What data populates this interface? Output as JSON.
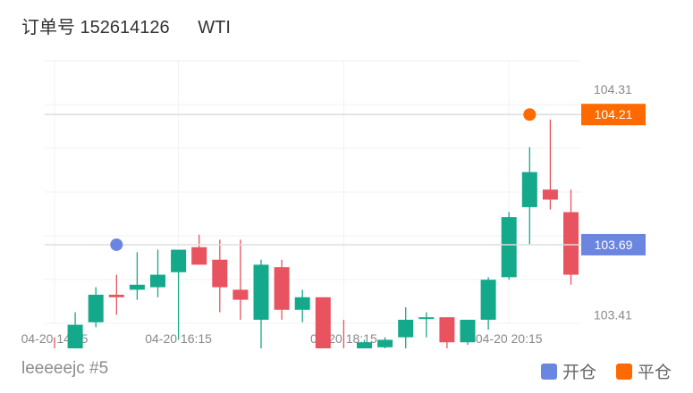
{
  "header": {
    "order_label": "订单号 152614126",
    "symbol": "WTI"
  },
  "footer": {
    "user": "leeeeejc #5"
  },
  "legend": [
    {
      "label": "开仓",
      "color": "#6b86e0"
    },
    {
      "label": "平仓",
      "color": "#ff6a00"
    }
  ],
  "colors": {
    "up": "#e8535f",
    "down": "#14a98b"
  },
  "chart_data": {
    "type": "candlestick",
    "ylim": [
      103.0,
      104.4
    ],
    "y_ticks": [
      104.31,
      103.41
    ],
    "x_tick_labels": [
      "04-20 14:15",
      "04-20 16:15",
      "04-20 18:15",
      "04-20 20:15"
    ],
    "x_tick_indices": [
      0,
      6,
      14,
      22
    ],
    "candles": [
      {
        "o": 103.27,
        "h": 103.32,
        "l": 102.97,
        "c": 103.17
      },
      {
        "o": 103.16,
        "h": 103.42,
        "l": 103.12,
        "c": 103.37
      },
      {
        "o": 103.38,
        "h": 103.52,
        "l": 103.36,
        "c": 103.49
      },
      {
        "o": 103.49,
        "h": 103.57,
        "l": 103.41,
        "c": 103.48
      },
      {
        "o": 103.51,
        "h": 103.66,
        "l": 103.47,
        "c": 103.53
      },
      {
        "o": 103.52,
        "h": 103.67,
        "l": 103.48,
        "c": 103.57
      },
      {
        "o": 103.58,
        "h": 103.67,
        "l": 103.31,
        "c": 103.67
      },
      {
        "o": 103.68,
        "h": 103.73,
        "l": 103.61,
        "c": 103.61
      },
      {
        "o": 103.63,
        "h": 103.71,
        "l": 103.42,
        "c": 103.52
      },
      {
        "o": 103.51,
        "h": 103.71,
        "l": 103.39,
        "c": 103.47
      },
      {
        "o": 103.39,
        "h": 103.63,
        "l": 103.22,
        "c": 103.61
      },
      {
        "o": 103.6,
        "h": 103.63,
        "l": 103.39,
        "c": 103.43
      },
      {
        "o": 103.43,
        "h": 103.51,
        "l": 103.38,
        "c": 103.48
      },
      {
        "o": 103.48,
        "h": 103.48,
        "l": 103.23,
        "c": 103.24
      },
      {
        "o": 103.24,
        "h": 103.39,
        "l": 103.12,
        "c": 103.13
      },
      {
        "o": 103.14,
        "h": 103.31,
        "l": 103.13,
        "c": 103.3
      },
      {
        "o": 103.28,
        "h": 103.32,
        "l": 103.23,
        "c": 103.31
      },
      {
        "o": 103.32,
        "h": 103.44,
        "l": 103.26,
        "c": 103.39
      },
      {
        "o": 103.4,
        "h": 103.42,
        "l": 103.32,
        "c": 103.4
      },
      {
        "o": 103.4,
        "h": 103.4,
        "l": 103.25,
        "c": 103.3
      },
      {
        "o": 103.3,
        "h": 103.39,
        "l": 103.29,
        "c": 103.39
      },
      {
        "o": 103.39,
        "h": 103.56,
        "l": 103.35,
        "c": 103.55
      },
      {
        "o": 103.56,
        "h": 103.82,
        "l": 103.55,
        "c": 103.8
      },
      {
        "o": 103.84,
        "h": 104.08,
        "l": 103.69,
        "c": 103.98
      },
      {
        "o": 103.91,
        "h": 104.19,
        "l": 103.83,
        "c": 103.87
      },
      {
        "o": 103.82,
        "h": 103.91,
        "l": 103.53,
        "c": 103.57
      }
    ],
    "markers": [
      {
        "type": "open",
        "index": 3,
        "price": 103.69,
        "label": "103.69"
      },
      {
        "type": "close",
        "index": 23,
        "price": 104.21,
        "label": "104.21"
      }
    ]
  }
}
